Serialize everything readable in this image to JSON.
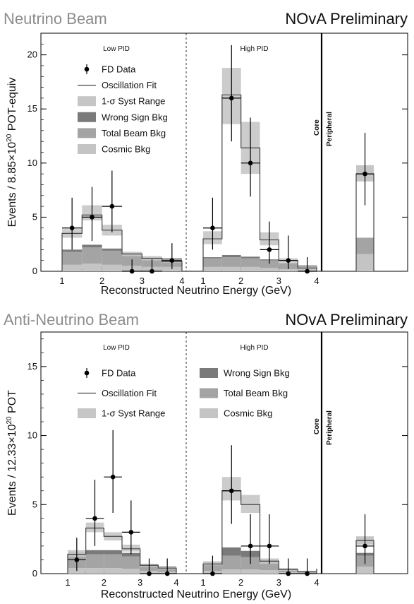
{
  "colors": {
    "syst": "#c6c6c6",
    "wrong_sign": "#7a7a7a",
    "total_beam": "#a4a4a4",
    "cosmic": "#c4c4c4",
    "fit": "#444444",
    "data": "#000000"
  },
  "chart_data": [
    {
      "type": "histogram",
      "title": "Neutrino Beam",
      "subtitle": "NOvA Preliminary",
      "ylabel_parts": [
        "Events / 8.85×10",
        "20",
        " POT-equiv"
      ],
      "xlabel": "Reconstructed Neutrino Energy (GeV)",
      "ylim": [
        0,
        22
      ],
      "yticks": [
        0,
        5,
        10,
        15,
        20
      ],
      "xlim": [
        0.6,
        4.5
      ],
      "xticks": [
        1,
        2,
        3,
        4
      ],
      "region_labels": {
        "low": "Low PID",
        "high": "High PID",
        "core": "Core",
        "peripheral": "Peripheral"
      },
      "legend": [
        "FD Data",
        "Oscillation Fit",
        "1-σ Syst Range",
        "Wrong Sign Bkg",
        "Total Beam Bkg",
        "Cosmic Bkg"
      ],
      "legend_layout": "one-column",
      "bin_edges": [
        1.0,
        1.5,
        2.0,
        2.5,
        3.0,
        3.5,
        4.0
      ],
      "low_pid": {
        "prediction": [
          3.5,
          5.2,
          3.8,
          1.6,
          1.2,
          0.9
        ],
        "syst_band": [
          [
            3.1,
            3.9
          ],
          [
            4.7,
            6.1
          ],
          [
            3.3,
            4.3
          ],
          [
            1.4,
            1.8
          ],
          [
            1.0,
            1.4
          ],
          [
            0.8,
            1.0
          ]
        ],
        "wrong_sign": [
          0.2,
          0.25,
          0.2,
          0.15,
          0.1,
          0.1
        ],
        "total_beam": [
          1.2,
          1.5,
          1.3,
          1.0,
          0.8,
          0.7
        ],
        "cosmic": [
          0.6,
          0.7,
          0.6,
          0.5,
          0.4,
          0.4
        ],
        "data": [
          {
            "x": 1.25,
            "y": 4,
            "err_lo": 2,
            "err_hi": 2.8
          },
          {
            "x": 1.75,
            "y": 5,
            "err_lo": 2.2,
            "err_hi": 2.8
          },
          {
            "x": 2.25,
            "y": 6,
            "err_lo": 2.4,
            "err_hi": 3.3
          },
          {
            "x": 2.75,
            "y": 0,
            "err_lo": 0,
            "err_hi": 1.1
          },
          {
            "x": 3.25,
            "y": 0,
            "err_lo": 0,
            "err_hi": 1.1
          },
          {
            "x": 3.75,
            "y": 1,
            "err_lo": 0.8,
            "err_hi": 1.6
          }
        ]
      },
      "high_pid": {
        "prediction": [
          3.0,
          16.3,
          11.4,
          2.9,
          1.0,
          0.3
        ],
        "syst_band": [
          [
            2.5,
            3.7
          ],
          [
            13.6,
            18.8
          ],
          [
            9.0,
            13.8
          ],
          [
            2.4,
            3.6
          ],
          [
            0.8,
            1.2
          ],
          [
            0.2,
            0.4
          ]
        ],
        "wrong_sign": [
          0.1,
          0.2,
          0.15,
          0.1,
          0.05,
          0.05
        ],
        "total_beam": [
          0.8,
          0.9,
          0.8,
          0.7,
          0.5,
          0.3
        ],
        "cosmic": [
          0.4,
          0.4,
          0.4,
          0.3,
          0.2,
          0.2
        ],
        "data": [
          {
            "x": 1.25,
            "y": 4,
            "err_lo": 2,
            "err_hi": 2.8
          },
          {
            "x": 1.75,
            "y": 16,
            "err_lo": 4,
            "err_hi": 4.9
          },
          {
            "x": 2.25,
            "y": 10,
            "err_lo": 3.1,
            "err_hi": 4.2
          },
          {
            "x": 2.75,
            "y": 2,
            "err_lo": 1.3,
            "err_hi": 2.6
          },
          {
            "x": 3.25,
            "y": 1,
            "err_lo": 0.8,
            "err_hi": 2.3
          },
          {
            "x": 3.75,
            "y": 0,
            "err_lo": 0,
            "err_hi": 1.3
          }
        ]
      },
      "peripheral": {
        "prediction": 9.0,
        "syst_band": [
          8.3,
          9.8
        ],
        "wrong_sign": 0.0,
        "total_beam": 1.5,
        "cosmic": 1.6,
        "data": {
          "y": 9,
          "err_lo": 2.9,
          "err_hi": 3.8
        }
      }
    },
    {
      "type": "histogram",
      "title": "Anti-Neutrino Beam",
      "subtitle": "NOvA Preliminary",
      "ylabel_parts": [
        "Events / 12.33×10",
        "20",
        " POT"
      ],
      "xlabel": "Reconstructed Neutrino Energy (GeV)",
      "ylim": [
        0,
        17.5
      ],
      "yticks": [
        0,
        5,
        10,
        15
      ],
      "xlim": [
        0.6,
        4.5
      ],
      "xticks": [
        1,
        2,
        3,
        4
      ],
      "region_labels": {
        "low": "Low PID",
        "high": "High PID",
        "core": "Core",
        "peripheral": "Peripheral"
      },
      "legend": [
        "FD Data",
        "Oscillation Fit",
        "1-σ Syst Range",
        "Wrong Sign Bkg",
        "Total Beam Bkg",
        "Cosmic Bkg"
      ],
      "legend_layout": "two-column",
      "bin_edges": [
        1.0,
        1.5,
        2.0,
        2.5,
        3.0,
        3.5,
        4.0
      ],
      "low_pid": {
        "prediction": [
          1.4,
          3.3,
          2.7,
          1.8,
          0.6,
          0.4
        ],
        "syst_band": [
          [
            1.2,
            1.7
          ],
          [
            3.0,
            3.7
          ],
          [
            2.4,
            3.0
          ],
          [
            1.6,
            2.1
          ],
          [
            0.5,
            0.7
          ],
          [
            0.3,
            0.5
          ]
        ],
        "wrong_sign": [
          0.25,
          0.3,
          0.3,
          0.25,
          0.1,
          0.08
        ],
        "total_beam": [
          0.9,
          1.0,
          1.0,
          0.9,
          0.4,
          0.3
        ],
        "cosmic": [
          0.4,
          0.4,
          0.4,
          0.35,
          0.2,
          0.15
        ],
        "data": [
          {
            "x": 1.25,
            "y": 1,
            "err_lo": 0.8,
            "err_hi": 1.6
          },
          {
            "x": 1.75,
            "y": 4,
            "err_lo": 2,
            "err_hi": 2.8
          },
          {
            "x": 2.25,
            "y": 7,
            "err_lo": 2.6,
            "err_hi": 3.4
          },
          {
            "x": 2.75,
            "y": 3,
            "err_lo": 1.6,
            "err_hi": 2.3
          },
          {
            "x": 3.25,
            "y": 0,
            "err_lo": 0,
            "err_hi": 1.1
          },
          {
            "x": 3.75,
            "y": 0,
            "err_lo": 0,
            "err_hi": 1.1
          }
        ]
      },
      "high_pid": {
        "prediction": [
          0.7,
          6.0,
          5.0,
          0.9,
          0.3,
          0.15
        ],
        "syst_band": [
          [
            0.6,
            0.9
          ],
          [
            5.3,
            7.0
          ],
          [
            4.4,
            5.7
          ],
          [
            0.7,
            1.1
          ],
          [
            0.2,
            0.4
          ],
          [
            0.1,
            0.2
          ]
        ],
        "wrong_sign": [
          0.1,
          0.6,
          0.45,
          0.15,
          0.05,
          0.03
        ],
        "total_beam": [
          0.5,
          1.0,
          0.9,
          0.6,
          0.2,
          0.1
        ],
        "cosmic": [
          0.2,
          0.3,
          0.3,
          0.25,
          0.1,
          0.05
        ],
        "data": [
          {
            "x": 1.25,
            "y": 0,
            "err_lo": 0,
            "err_hi": 1.3
          },
          {
            "x": 1.75,
            "y": 6,
            "err_lo": 2.4,
            "err_hi": 3.3
          },
          {
            "x": 2.25,
            "y": 2,
            "err_lo": 1.3,
            "err_hi": 2.3
          },
          {
            "x": 2.75,
            "y": 2,
            "err_lo": 1.3,
            "err_hi": 2.3
          },
          {
            "x": 3.25,
            "y": 0,
            "err_lo": 0,
            "err_hi": 1.1
          },
          {
            "x": 3.75,
            "y": 0,
            "err_lo": 0,
            "err_hi": 1.1
          }
        ]
      },
      "peripheral": {
        "prediction": 2.4,
        "syst_band": [
          2.1,
          2.7
        ],
        "wrong_sign": 0.2,
        "total_beam": 0.8,
        "cosmic": 0.5,
        "data": {
          "y": 2,
          "err_lo": 1.3,
          "err_hi": 2.3
        }
      }
    }
  ]
}
